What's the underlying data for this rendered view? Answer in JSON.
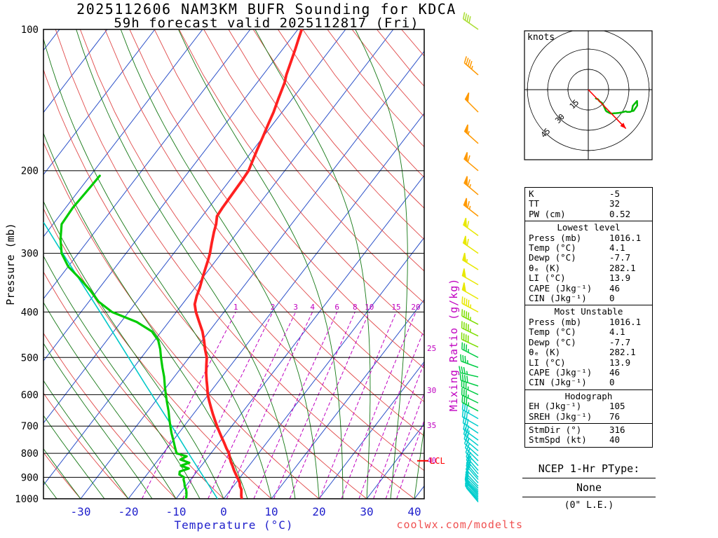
{
  "title": {
    "line1": "2025112606 NAM3KM BUFR Sounding for KDCA",
    "line2": "59h forecast valid 2025112817 (Fri)"
  },
  "watermark": "coolwx.com/modelts",
  "axes": {
    "pressure_label": "Pressure (mb)",
    "temperature_label": "Temperature (°C)",
    "mixing_ratio_label": "Mixing Ratio (g/kg)",
    "pressure_ticks": [
      100,
      200,
      300,
      400,
      500,
      600,
      700,
      800,
      900,
      1000
    ],
    "temperature_ticks": [
      -30,
      -20,
      -10,
      0,
      10,
      20,
      30,
      40
    ],
    "lcl_label": "LCL"
  },
  "hodograph": {
    "unit_label": "knots",
    "rings_kt": [
      15,
      30,
      45
    ],
    "storm_motion_dir_deg": 316,
    "storm_motion_speed_kt": 40,
    "max_pressure_plotted_mb": 500
  },
  "stats": {
    "sections": [
      {
        "title": null,
        "rows": [
          [
            "K",
            "-5"
          ],
          [
            "TT",
            "32"
          ],
          [
            "PW (cm)",
            "0.52"
          ]
        ]
      },
      {
        "title": "Lowest level",
        "rows": [
          [
            "Press (mb)",
            "1016.1"
          ],
          [
            "Temp (°C)",
            "4.1"
          ],
          [
            "Dewp (°C)",
            "-7.7"
          ],
          [
            "θₑ (K)",
            "282.1"
          ],
          [
            "LI (°C)",
            "13.9"
          ],
          [
            "CAPE (Jkg⁻¹)",
            "46"
          ],
          [
            "CIN (Jkg⁻¹)",
            "0"
          ]
        ]
      },
      {
        "title": "Most Unstable",
        "rows": [
          [
            "Press (mb)",
            "1016.1"
          ],
          [
            "Temp (°C)",
            "4.1"
          ],
          [
            "Dewp (°C)",
            "-7.7"
          ],
          [
            "θₑ (K)",
            "282.1"
          ],
          [
            "LI (°C)",
            "13.9"
          ],
          [
            "CAPE (Jkg⁻¹)",
            "46"
          ],
          [
            "CIN (Jkg⁻¹)",
            "0"
          ]
        ]
      },
      {
        "title": "Hodograph",
        "rows": [
          [
            "EH (Jkg⁻¹)",
            "105"
          ],
          [
            "SREH (Jkg⁻¹)",
            "76"
          ]
        ]
      },
      {
        "title": null,
        "rows": [
          [
            "StmDir (°)",
            "316"
          ],
          [
            "StmSpd (kt)",
            "40"
          ]
        ]
      }
    ]
  },
  "ptype": {
    "title": "NCEP 1-Hr PType:",
    "value": "None",
    "le": "(0\" L.E.)"
  },
  "colors": {
    "isotherm": "#2b50c8",
    "dry_adiabat": "#e04848",
    "moist_adiabat": "#157815",
    "mixing_ratio": "#c000c0",
    "temperature": "#ff2020",
    "dewpoint": "#00cc00",
    "wetbulb": "#00c8c8",
    "axis_temp": "#2020cc",
    "lcl": "#ff0000",
    "hodo_trace": "#00bb00",
    "storm_motion": "#ff0000"
  },
  "barb_colors": [
    {
      "min_p": 660,
      "c": "#00cdcd"
    },
    {
      "min_p": 490,
      "c": "#00cc44"
    },
    {
      "min_p": 410,
      "c": "#7ddd00"
    },
    {
      "min_p": 270,
      "c": "#e8e800"
    },
    {
      "min_p": 125,
      "c": "#ff9900"
    },
    {
      "min_p": 0,
      "c": "#aadd33"
    }
  ],
  "chart_data": {
    "type": "line",
    "subtype": "skew-t-log-p sounding",
    "title": "2025112606 NAM3KM BUFR Sounding for KDCA, 59h forecast valid 2025112817 (Fri)",
    "xlabel": "Temperature (°C)",
    "ylabel": "Pressure (mb)",
    "x_ticks": [
      -30,
      -20,
      -10,
      0,
      10,
      20,
      30,
      40
    ],
    "y_ticks": [
      100,
      200,
      300,
      400,
      500,
      600,
      700,
      800,
      900,
      1000
    ],
    "y_scale": "log",
    "skew": 0.767,
    "isotherm_step_c": 10,
    "dry_adiabat_step_c": 10,
    "moist_adiabat_step_c": 5,
    "mixing_ratio_lines_gkg": [
      1,
      2,
      3,
      4,
      6,
      8,
      10,
      15,
      20,
      25,
      30,
      35,
      40
    ],
    "mixing_ratio_inner_label_values": [
      1,
      2,
      3,
      4,
      6,
      8,
      10,
      15,
      20
    ],
    "mixing_ratio_right_labels": [
      [
        25,
        478
      ],
      [
        30,
        587
      ],
      [
        35,
        697
      ],
      [
        40,
        828
      ]
    ],
    "lcl_pressure_mb": 830,
    "temperature_profile": [
      [
        1016,
        4.1
      ],
      [
        1000,
        3.8
      ],
      [
        985,
        3.2
      ],
      [
        970,
        2.7
      ],
      [
        955,
        2.2
      ],
      [
        940,
        1.4
      ],
      [
        925,
        0.8
      ],
      [
        910,
        0.0
      ],
      [
        900,
        -0.6
      ],
      [
        885,
        -1.5
      ],
      [
        870,
        -2.4
      ],
      [
        850,
        -3.5
      ],
      [
        835,
        -4.4
      ],
      [
        820,
        -5.2
      ],
      [
        800,
        -6.2
      ],
      [
        780,
        -7.6
      ],
      [
        760,
        -8.9
      ],
      [
        740,
        -10.3
      ],
      [
        720,
        -11.7
      ],
      [
        700,
        -13.1
      ],
      [
        680,
        -14.5
      ],
      [
        660,
        -15.9
      ],
      [
        640,
        -17.3
      ],
      [
        620,
        -18.7
      ],
      [
        600,
        -20.1
      ],
      [
        580,
        -21.3
      ],
      [
        560,
        -22.6
      ],
      [
        540,
        -23.9
      ],
      [
        520,
        -25.1
      ],
      [
        500,
        -26.3
      ],
      [
        480,
        -28.0
      ],
      [
        460,
        -29.6
      ],
      [
        440,
        -31.4
      ],
      [
        420,
        -33.6
      ],
      [
        400,
        -35.9
      ],
      [
        385,
        -37.4
      ],
      [
        370,
        -38.3
      ],
      [
        355,
        -39.0
      ],
      [
        340,
        -39.9
      ],
      [
        325,
        -40.8
      ],
      [
        310,
        -41.7
      ],
      [
        300,
        -42.4
      ],
      [
        285,
        -43.7
      ],
      [
        270,
        -45.0
      ],
      [
        260,
        -45.8
      ],
      [
        250,
        -46.9
      ],
      [
        240,
        -47.1
      ],
      [
        230,
        -47.2
      ],
      [
        220,
        -47.3
      ],
      [
        210,
        -47.4
      ],
      [
        200,
        -47.6
      ],
      [
        190,
        -48.4
      ],
      [
        180,
        -49.2
      ],
      [
        170,
        -50.0
      ],
      [
        160,
        -50.9
      ],
      [
        150,
        -51.8
      ],
      [
        140,
        -53.0
      ],
      [
        130,
        -54.2
      ],
      [
        125,
        -55.1
      ],
      [
        115,
        -56.6
      ],
      [
        110,
        -57.4
      ],
      [
        105,
        -58.3
      ],
      [
        100,
        -59.2
      ]
    ],
    "dewpoint_profile": [
      [
        1016,
        -7.7
      ],
      [
        1000,
        -7.9
      ],
      [
        985,
        -8.3
      ],
      [
        970,
        -8.8
      ],
      [
        955,
        -9.4
      ],
      [
        940,
        -10.2
      ],
      [
        925,
        -10.8
      ],
      [
        910,
        -11.5
      ],
      [
        900,
        -11.8
      ],
      [
        888,
        -13.2
      ],
      [
        875,
        -13.6
      ],
      [
        862,
        -12.2
      ],
      [
        850,
        -14.3
      ],
      [
        838,
        -13.0
      ],
      [
        825,
        -15.4
      ],
      [
        812,
        -14.6
      ],
      [
        800,
        -17.2
      ],
      [
        775,
        -18.6
      ],
      [
        750,
        -20.0
      ],
      [
        725,
        -21.5
      ],
      [
        700,
        -22.9
      ],
      [
        675,
        -24.3
      ],
      [
        650,
        -25.7
      ],
      [
        625,
        -27.3
      ],
      [
        600,
        -28.9
      ],
      [
        575,
        -30.5
      ],
      [
        550,
        -32.1
      ],
      [
        525,
        -34.0
      ],
      [
        500,
        -35.9
      ],
      [
        480,
        -37.4
      ],
      [
        460,
        -39.2
      ],
      [
        440,
        -42.0
      ],
      [
        420,
        -46.7
      ],
      [
        400,
        -53.5
      ],
      [
        380,
        -58.0
      ],
      [
        360,
        -61.5
      ],
      [
        340,
        -65.5
      ],
      [
        320,
        -70.0
      ],
      [
        300,
        -73.5
      ],
      [
        280,
        -76.0
      ],
      [
        260,
        -78.2
      ],
      [
        240,
        -78.5
      ],
      [
        220,
        -78.2
      ],
      [
        205,
        -78.0
      ]
    ],
    "wetbulb_trace": [
      [
        1000,
        -1.3
      ],
      [
        808,
        -14.1
      ],
      [
        680,
        -24.3
      ],
      [
        573,
        -34.6
      ],
      [
        482,
        -44.9
      ],
      [
        406,
        -55.1
      ],
      [
        342,
        -65.4
      ],
      [
        288,
        -75.7
      ],
      [
        258,
        -82.2
      ]
    ],
    "wind_profile_kt": [
      [
        1016,
        320,
        8
      ],
      [
        1008,
        318,
        9
      ],
      [
        1000,
        315,
        10
      ],
      [
        992,
        315,
        11
      ],
      [
        984,
        316,
        12
      ],
      [
        976,
        315,
        13
      ],
      [
        968,
        314,
        14
      ],
      [
        960,
        315,
        15
      ],
      [
        950,
        316,
        16
      ],
      [
        940,
        317,
        17
      ],
      [
        925,
        318,
        18
      ],
      [
        910,
        319,
        19
      ],
      [
        900,
        320,
        20
      ],
      [
        885,
        320,
        21
      ],
      [
        870,
        319,
        22
      ],
      [
        850,
        317,
        24
      ],
      [
        830,
        315,
        25
      ],
      [
        810,
        312,
        26
      ],
      [
        790,
        310,
        27
      ],
      [
        770,
        308,
        28
      ],
      [
        750,
        306,
        29
      ],
      [
        725,
        304,
        30
      ],
      [
        700,
        300,
        32
      ],
      [
        675,
        300,
        33
      ],
      [
        650,
        298,
        35
      ],
      [
        625,
        296,
        36
      ],
      [
        600,
        295,
        37
      ],
      [
        575,
        288,
        38
      ],
      [
        550,
        283,
        37
      ],
      [
        525,
        290,
        35
      ],
      [
        500,
        297,
        36
      ],
      [
        475,
        295,
        40
      ],
      [
        450,
        296,
        43
      ],
      [
        425,
        297,
        45
      ],
      [
        400,
        298,
        47
      ],
      [
        375,
        300,
        50
      ],
      [
        350,
        300,
        52
      ],
      [
        325,
        302,
        55
      ],
      [
        300,
        305,
        58
      ],
      [
        275,
        306,
        61
      ],
      [
        250,
        308,
        65
      ],
      [
        225,
        310,
        64
      ],
      [
        200,
        310,
        60
      ],
      [
        175,
        312,
        55
      ],
      [
        150,
        315,
        50
      ],
      [
        125,
        311,
        45
      ],
      [
        100,
        305,
        40
      ]
    ]
  }
}
